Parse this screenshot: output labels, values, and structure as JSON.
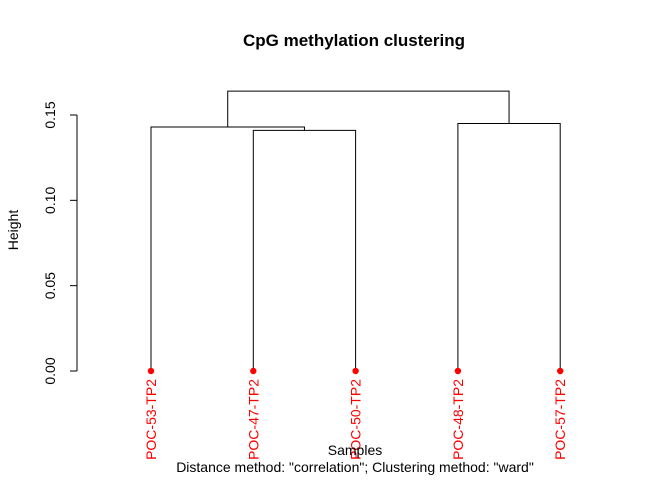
{
  "chart_data": {
    "type": "dendrogram",
    "title": "CpG methylation clustering",
    "xlabel": "Samples",
    "sublabel": "Distance method: \"correlation\"; Clustering method: \"ward\"",
    "ylabel": "Height",
    "ylim": [
      0,
      0.15
    ],
    "y_ticks": [
      0.0,
      0.05,
      0.1,
      0.15
    ],
    "y_tick_labels": [
      "0.00",
      "0.05",
      "0.10",
      "0.15"
    ],
    "leaves": [
      "POC-53-TP2",
      "POC-47-TP2",
      "POC-50-TP2",
      "POC-48-TP2",
      "POC-57-TP2"
    ],
    "merges": [
      {
        "children": [
          "leaf:1",
          "leaf:2"
        ],
        "height": 0.141
      },
      {
        "children": [
          "leaf:0",
          "node:0"
        ],
        "height": 0.143
      },
      {
        "children": [
          "leaf:3",
          "leaf:4"
        ],
        "height": 0.145
      },
      {
        "children": [
          "node:1",
          "node:2"
        ],
        "height": 0.164
      }
    ],
    "leaf_color": "#ff0000",
    "line_color": "#000000",
    "grid": false
  }
}
